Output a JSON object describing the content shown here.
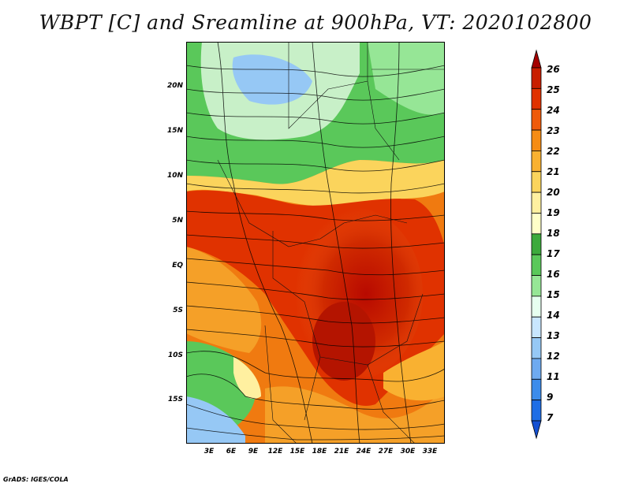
{
  "title": "WBPT [C] and Sreamline at 900hPa, VT: 2020102800",
  "credit": "GrADS: IGES/COLA",
  "map": {
    "lat_labels": [
      "20N",
      "15N",
      "10N",
      "5N",
      "EQ",
      "5S",
      "10S",
      "15S"
    ],
    "lon_labels": [
      "3E",
      "6E",
      "9E",
      "12E",
      "15E",
      "18E",
      "21E",
      "24E",
      "27E",
      "30E",
      "33E"
    ]
  },
  "colorbar": {
    "levels": [
      "26",
      "25",
      "24",
      "23",
      "22",
      "21",
      "20",
      "19",
      "18",
      "17",
      "16",
      "15",
      "14",
      "13",
      "12",
      "11",
      "9",
      "7"
    ],
    "colors": [
      "#a50000",
      "#c81e00",
      "#e03200",
      "#ef5a0a",
      "#f58c14",
      "#f9b131",
      "#fbd45c",
      "#fff0a0",
      "#ffffc8",
      "#3caa3c",
      "#5ac85a",
      "#96e696",
      "#e6fff0",
      "#c8e6ff",
      "#96c8f5",
      "#6eaaf0",
      "#3c8ceb",
      "#1e6ee6",
      "#1450d2"
    ]
  }
}
